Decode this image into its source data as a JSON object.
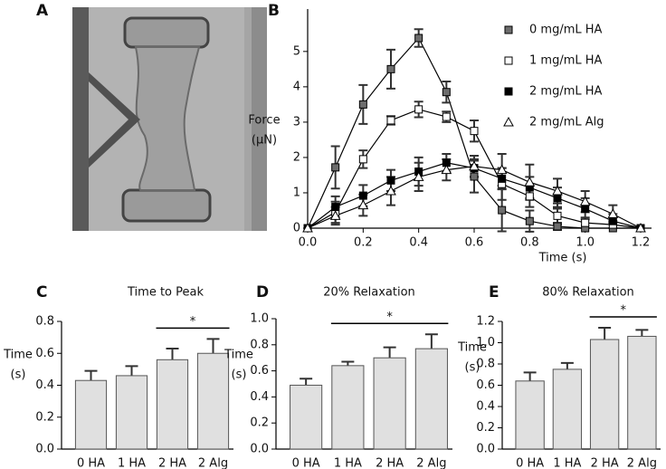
{
  "chart_data": [
    {
      "type": "image",
      "panel": "A"
    },
    {
      "type": "line",
      "panel": "B",
      "x": [
        0,
        0.1,
        0.2,
        0.3,
        0.4,
        0.5,
        0.6,
        0.7,
        0.8,
        0.9,
        1.0,
        1.1,
        1.2
      ],
      "series": [
        {
          "name": "0 mg/mL HA",
          "color": "#6d6d6d",
          "marker": "square",
          "values": [
            0,
            1.72,
            3.5,
            4.5,
            5.38,
            3.85,
            1.46,
            0.51,
            0.2,
            0.05,
            0,
            0,
            0
          ],
          "errors": [
            0,
            0.6,
            0.55,
            0.55,
            0.25,
            0.3,
            0.45,
            0.6,
            0.3,
            0.1,
            0,
            0,
            0
          ]
        },
        {
          "name": "1 mg/mL HA",
          "color": "#ffffff",
          "marker": "square",
          "values": [
            0,
            0.45,
            1.95,
            3.05,
            3.36,
            3.15,
            2.75,
            1.25,
            0.9,
            0.35,
            0.15,
            0.1,
            0
          ],
          "errors": [
            0,
            0.3,
            0.25,
            0.12,
            0.22,
            0.15,
            0.3,
            0.45,
            0.3,
            0.25,
            0.15,
            0.1,
            0
          ]
        },
        {
          "name": "2 mg/mL HA",
          "color": "#000000",
          "marker": "square",
          "values": [
            0,
            0.6,
            0.92,
            1.35,
            1.6,
            1.85,
            1.7,
            1.4,
            1.15,
            0.85,
            0.55,
            0.2,
            0
          ],
          "errors": [
            0,
            0.3,
            0.3,
            0.3,
            0.4,
            0.25,
            0.25,
            0.3,
            0.3,
            0.3,
            0.3,
            0.2,
            0
          ]
        },
        {
          "name": "2 mg/mL Alg",
          "color": "#ffffff",
          "marker": "triangle",
          "values": [
            0,
            0.35,
            0.65,
            1.05,
            1.45,
            1.65,
            1.75,
            1.65,
            1.3,
            1.05,
            0.75,
            0.4,
            0
          ],
          "errors": [
            0,
            0.25,
            0.3,
            0.4,
            0.4,
            0.3,
            0.3,
            0.45,
            0.5,
            0.35,
            0.3,
            0.25,
            0
          ]
        }
      ],
      "line_color": "#000000",
      "x_label": "Time (s)",
      "y_label": [
        "Force",
        "(µN)"
      ],
      "xlim": [
        0,
        1.2
      ],
      "ylim": [
        0,
        6.2
      ],
      "xticks": [
        {
          "value": 0,
          "label": "0.0"
        },
        0.2,
        0.4,
        0.6,
        0.8,
        {
          "value": 1,
          "label": "1.0"
        },
        1.2
      ],
      "yticks": [
        0,
        1,
        2,
        3,
        4,
        5
      ],
      "legend": "top-right"
    },
    {
      "type": "bar",
      "panel": "C",
      "title": "Time to Peak",
      "y_label": [
        "Time",
        "(s)"
      ],
      "categories": [
        "0 HA",
        "1 HA",
        "2 HA",
        "2 Alg"
      ],
      "values": [
        0.43,
        0.46,
        0.56,
        0.6
      ],
      "errors": [
        0.06,
        0.06,
        0.07,
        0.09
      ],
      "color": "#e0e0e0",
      "ylim": [
        0,
        0.8
      ],
      "yticks": [
        {
          "value": 0,
          "label": "0.0"
        },
        0.2,
        0.4,
        0.6,
        0.8
      ],
      "bracket": {
        "categories": [
          "2 HA",
          "2 Alg"
        ],
        "label": "*"
      }
    },
    {
      "type": "bar",
      "panel": "D",
      "title": "20% Relaxation",
      "y_label": [
        "Time",
        "(s)"
      ],
      "categories": [
        "0 HA",
        "1 HA",
        "2 HA",
        "2 Alg"
      ],
      "values": [
        0.49,
        0.64,
        0.7,
        0.77
      ],
      "errors": [
        0.05,
        0.03,
        0.08,
        0.11
      ],
      "color": "#e0e0e0",
      "ylim": [
        0,
        1.0
      ],
      "yticks": [
        {
          "value": 0,
          "label": "0.0"
        },
        0.2,
        0.4,
        0.6,
        0.8,
        {
          "value": 1,
          "label": "1.0"
        }
      ],
      "bracket": {
        "categories": [
          "1 HA",
          "2 Alg"
        ],
        "label": "*"
      }
    },
    {
      "type": "bar",
      "panel": "E",
      "title": "80% Relaxation",
      "y_label": [
        "Time",
        "(s)"
      ],
      "categories": [
        "0 HA",
        "1 HA",
        "2 HA",
        "2 Alg"
      ],
      "values": [
        0.64,
        0.75,
        1.03,
        1.06
      ],
      "errors": [
        0.08,
        0.06,
        0.11,
        0.06
      ],
      "color": "#e0e0e0",
      "ylim": [
        0,
        1.2
      ],
      "yticks": [
        {
          "value": 0,
          "label": "0.0"
        },
        0.2,
        0.4,
        0.6,
        0.8,
        {
          "value": 1,
          "label": "1.0"
        },
        1.2
      ],
      "bracket": {
        "categories": [
          "2 HA",
          "2 Alg"
        ],
        "label": "*"
      }
    }
  ]
}
